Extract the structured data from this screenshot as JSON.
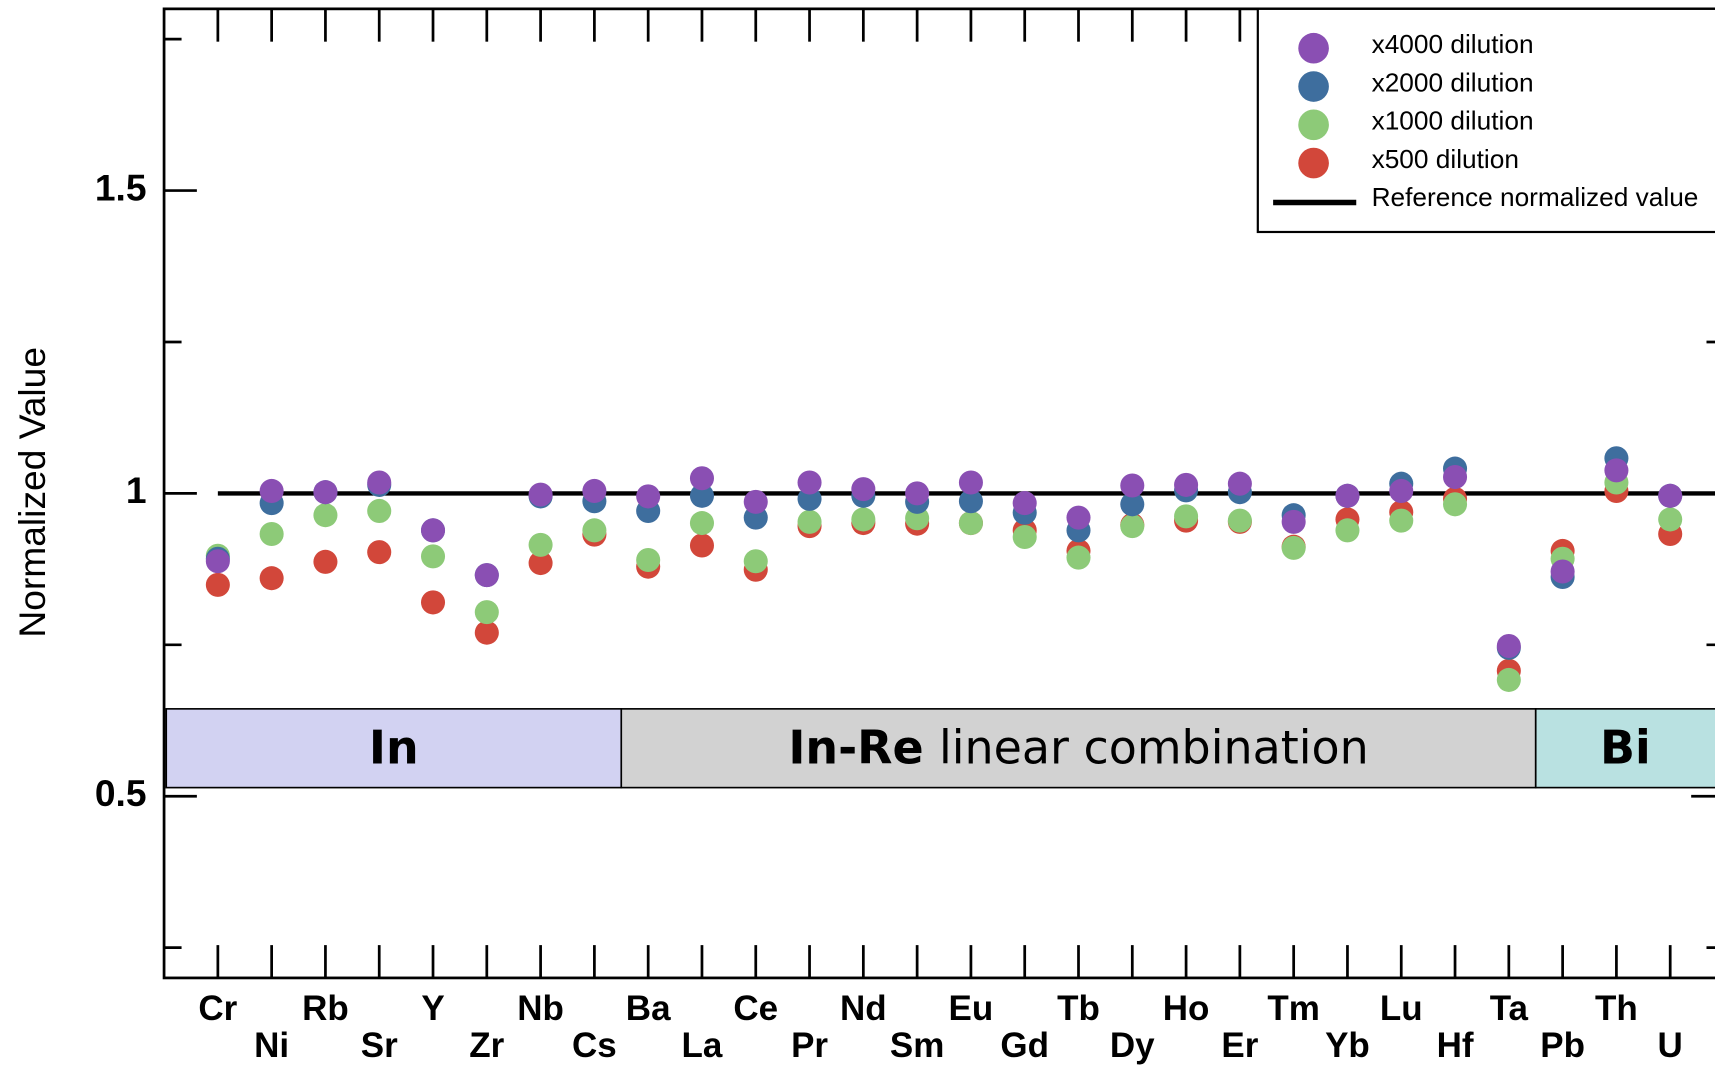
{
  "chart_data": {
    "type": "scatter",
    "y_label": "Normalized Value",
    "categories": [
      "Cr",
      "Ni",
      "Rb",
      "Sr",
      "Y",
      "Zr",
      "Nb",
      "Cs",
      "Ba",
      "La",
      "Ce",
      "Pr",
      "Nd",
      "Sm",
      "Eu",
      "Gd",
      "Tb",
      "Dy",
      "Ho",
      "Er",
      "Tm",
      "Yb",
      "Lu",
      "Hf",
      "Ta",
      "Pb",
      "Th",
      "U"
    ],
    "series": [
      {
        "name": "x4000 dilution",
        "color": "#8a4fb3",
        "values": [
          0.888,
          1.004,
          1.002,
          1.018,
          0.939,
          0.865,
          0.998,
          1.004,
          0.995,
          1.025,
          0.986,
          1.018,
          1.007,
          1.0,
          1.018,
          0.984,
          0.96,
          1.013,
          1.014,
          1.016,
          0.953,
          0.996,
          1.004,
          1.027,
          0.748,
          0.871,
          1.038,
          0.996
        ]
      },
      {
        "name": "x2000 dilution",
        "color": "#3e6e9e",
        "values": [
          0.892,
          0.984,
          1.002,
          1.014,
          0.939,
          0.865,
          0.995,
          0.987,
          0.971,
          0.996,
          0.96,
          0.991,
          0.996,
          0.986,
          0.987,
          0.968,
          0.939,
          0.982,
          1.005,
          1.002,
          0.964,
          0.996,
          1.016,
          1.041,
          0.745,
          0.862,
          1.058,
          0.996
        ]
      },
      {
        "name": "x1000 dilution",
        "color": "#8dca78",
        "values": [
          0.897,
          0.933,
          0.964,
          0.971,
          0.896,
          0.804,
          0.915,
          0.939,
          0.89,
          0.951,
          0.888,
          0.953,
          0.957,
          0.959,
          0.951,
          0.928,
          0.894,
          0.946,
          0.962,
          0.955,
          0.91,
          0.939,
          0.955,
          0.982,
          0.692,
          0.892,
          1.018,
          0.957
        ]
      },
      {
        "name": "x500 dilution",
        "color": "#d2473a",
        "values": [
          0.849,
          0.86,
          0.887,
          0.903,
          0.82,
          0.77,
          0.885,
          0.932,
          0.879,
          0.914,
          0.874,
          0.946,
          0.951,
          0.95,
          0.951,
          0.939,
          0.905,
          0.948,
          0.955,
          0.953,
          0.912,
          0.957,
          0.969,
          0.991,
          0.707,
          0.905,
          1.004,
          0.933
        ]
      }
    ],
    "reference_value": 1,
    "reference_label": "Reference normalized value",
    "ylim": [
      0.2,
      1.8
    ],
    "yticks": [
      0.5,
      1,
      1.5
    ],
    "yminor_ticks": [
      0.25,
      0.75,
      1.25,
      1.75
    ],
    "regions": [
      {
        "text": "In",
        "color": "#d2d2f2"
      },
      {
        "text": "In-Re",
        "text2": "linear combination",
        "color": "#d2d2d2"
      },
      {
        "text": "Bi",
        "color": "#b9e1e1"
      }
    ],
    "legend": "upper right"
  }
}
